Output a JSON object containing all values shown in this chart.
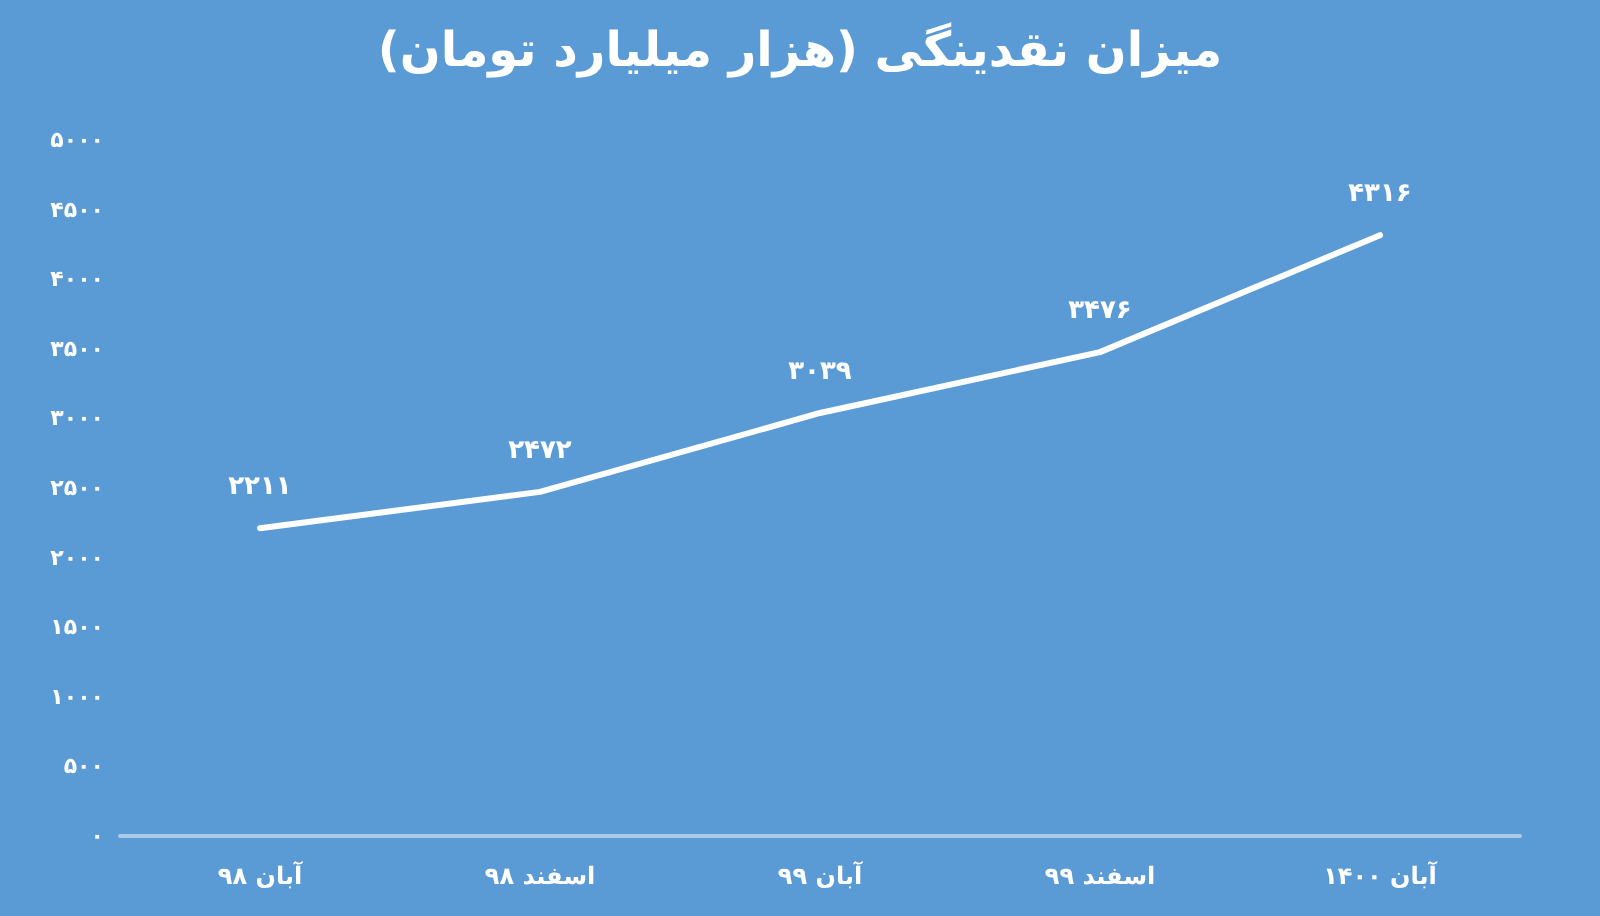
{
  "chart_data": {
    "type": "line",
    "title": "میزان نقدینگی (هزار میلیارد تومان)",
    "categories": [
      "آبان ۹۸",
      "اسفند ۹۸",
      "آبان ۹۹",
      "اسفند ۹۹",
      "آبان ۱۴۰۰"
    ],
    "series": [
      {
        "color": "#ffffff",
        "values": [
          2211,
          2472,
          3039,
          3476,
          4316
        ],
        "value_labels": [
          "۲۲۱۱",
          "۲۴۷۲",
          "۳۰۳۹",
          "۳۴۷۶",
          "۴۳۱۶"
        ]
      }
    ],
    "ylim": [
      0,
      5000
    ],
    "yticks": [
      {
        "value": 0,
        "label": "۰"
      },
      {
        "value": 500,
        "label": "۵۰۰"
      },
      {
        "value": 1000,
        "label": "۱۰۰۰"
      },
      {
        "value": 1500,
        "label": "۱۵۰۰"
      },
      {
        "value": 2000,
        "label": "۲۰۰۰"
      },
      {
        "value": 2500,
        "label": "۲۵۰۰"
      },
      {
        "value": 3000,
        "label": "۳۰۰۰"
      },
      {
        "value": 3500,
        "label": "۳۵۰۰"
      },
      {
        "value": 4000,
        "label": "۴۰۰۰"
      },
      {
        "value": 4500,
        "label": "۴۵۰۰"
      },
      {
        "value": 5000,
        "label": "۵۰۰۰"
      }
    ],
    "grid": false,
    "marker": "none",
    "line_style": "solid"
  }
}
